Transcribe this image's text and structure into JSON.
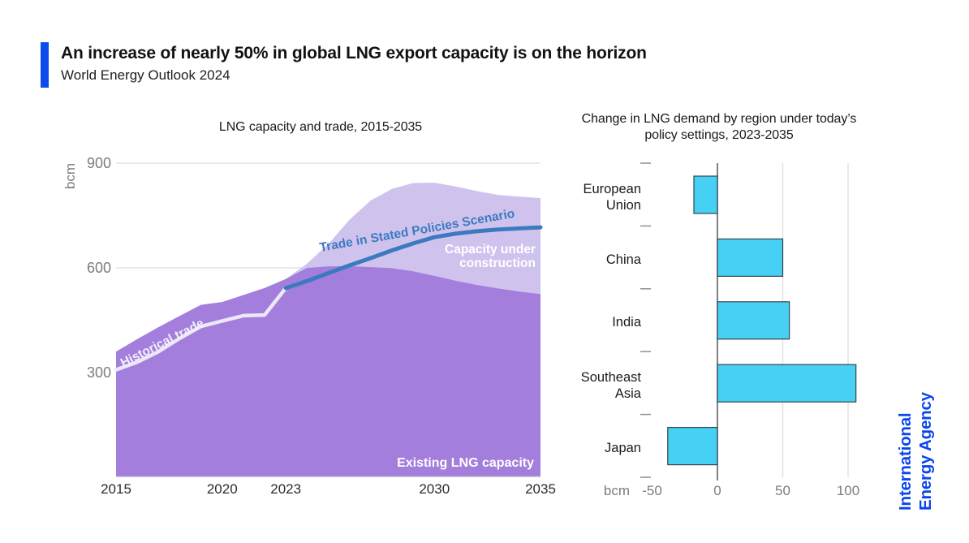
{
  "header": {
    "title": "An increase of nearly 50% in global LNG export capacity is on the horizon",
    "subtitle": "World Energy Outlook 2024"
  },
  "branding": {
    "line1": "International",
    "line2": "Energy Agency",
    "color": "#0a46f0"
  },
  "colors": {
    "accent_bar": "#0d4cec",
    "existing_area": "#a37edd",
    "construction_area": "#cfc3ee",
    "historical_line": "#ece8f7",
    "steps_line": "#3c7ac0",
    "bar_fill": "#45d0f4",
    "bar_border": "#37434d",
    "grid": "#e2e2e2",
    "axis_gray": "#7c7c7c",
    "zero_axis": "#53575c",
    "category_tick": "#8f8f8f",
    "baseline": "#d8d8d8"
  },
  "chart_data": [
    {
      "type": "area",
      "title": "LNG capacity and trade, 2015-2035",
      "ylabel": "bcm",
      "xlabel": "",
      "xlim": [
        2015,
        2035
      ],
      "ylim": [
        0,
        925
      ],
      "x_ticks": [
        2015,
        2020,
        2023,
        2030,
        2035
      ],
      "y_ticks": [
        300,
        600,
        900
      ],
      "grid": "horizontal",
      "legend_position": "labels-inside-plot",
      "years": [
        2015,
        2016,
        2017,
        2018,
        2019,
        2020,
        2021,
        2022,
        2023,
        2024,
        2025,
        2026,
        2027,
        2028,
        2029,
        2030,
        2031,
        2032,
        2033,
        2034,
        2035
      ],
      "series": [
        {
          "name": "Existing LNG capacity",
          "kind": "area",
          "color": "#a37edd",
          "values": [
            360,
            396,
            430,
            462,
            494,
            502,
            522,
            542,
            568,
            600,
            604,
            605,
            602,
            599,
            590,
            577,
            563,
            551,
            541,
            532,
            525
          ]
        },
        {
          "name": "Capacity under construction",
          "kind": "area-stacked-on-existing",
          "color": "#cfc3ee",
          "values": [
            0,
            0,
            0,
            0,
            0,
            0,
            0,
            0,
            0,
            12,
            64,
            133,
            191,
            227,
            253,
            267,
            270,
            269,
            268,
            272,
            275
          ]
        },
        {
          "name": "Historical trade",
          "kind": "line",
          "color": "#ece8f7",
          "years": [
            2015,
            2016,
            2017,
            2018,
            2019,
            2020,
            2021,
            2022,
            2023
          ],
          "values": [
            308,
            330,
            360,
            398,
            432,
            448,
            463,
            465,
            542
          ]
        },
        {
          "name": "Trade in Stated Policies Scenario",
          "kind": "line",
          "color": "#3c7ac0",
          "years": [
            2023,
            2024,
            2025,
            2026,
            2027,
            2028,
            2029,
            2030,
            2031,
            2032,
            2033,
            2034,
            2035
          ],
          "values": [
            542,
            562,
            585,
            607,
            628,
            650,
            670,
            688,
            698,
            705,
            710,
            713,
            716
          ]
        }
      ]
    },
    {
      "type": "bar",
      "orientation": "horizontal",
      "title": "Change in LNG demand by region under today’s policy settings, 2023-2035",
      "title_lines": [
        "Change in LNG demand by region under today’s",
        "policy settings, 2023-2035"
      ],
      "xlabel": "bcm",
      "categories": [
        "European Union",
        "China",
        "India",
        "Southeast Asia",
        "Japan"
      ],
      "values": [
        -18,
        50,
        55,
        106,
        -38
      ],
      "x_ticks": [
        -50,
        0,
        50,
        100
      ],
      "xlim": [
        -55,
        120
      ],
      "grid": "vertical",
      "bar_color": "#45d0f4",
      "bar_border": "#37434d"
    }
  ]
}
